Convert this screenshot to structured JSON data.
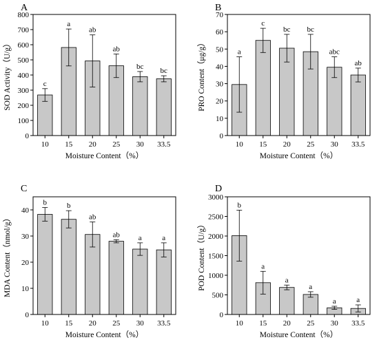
{
  "chart_data": [
    {
      "type": "bar",
      "panel": "A",
      "categories": [
        "10",
        "15",
        "20",
        "25",
        "30",
        "33.5"
      ],
      "values": [
        268,
        582,
        493,
        461,
        389,
        375
      ],
      "errors": [
        42,
        122,
        172,
        78,
        34,
        20
      ],
      "letters": [
        "c",
        "a",
        "ab",
        "ab",
        "bc",
        "bc"
      ],
      "xlabel": "Moisture Content（%）",
      "ylabel": "SOD Activity（U/g）",
      "ylim": [
        0,
        800
      ],
      "yticks": [
        0,
        100,
        200,
        300,
        400,
        500,
        600,
        700,
        800
      ]
    },
    {
      "type": "bar",
      "panel": "B",
      "categories": [
        "10",
        "15",
        "20",
        "25",
        "30",
        "33.5"
      ],
      "values": [
        29.5,
        55,
        50.5,
        48.5,
        39.5,
        35
      ],
      "errors": [
        16,
        7,
        8,
        10,
        6,
        4
      ],
      "letters": [
        "a",
        "c",
        "bc",
        "bc",
        "abc",
        "ab"
      ],
      "xlabel": "Moisture Content（%）",
      "ylabel": "PRO Content（μg/g）",
      "ylim": [
        0,
        70
      ],
      "yticks": [
        0,
        10,
        20,
        30,
        40,
        50,
        60,
        70
      ]
    },
    {
      "type": "bar",
      "panel": "C",
      "categories": [
        "10",
        "15",
        "20",
        "25",
        "30",
        "33.5"
      ],
      "values": [
        38.3,
        36.4,
        30.6,
        28,
        25,
        24.7
      ],
      "errors": [
        2.6,
        3.3,
        4.8,
        0.6,
        2.4,
        2.7
      ],
      "letters": [
        "b",
        "b",
        "ab",
        "ab",
        "a",
        "a"
      ],
      "xlabel": "Moisture Content（%）",
      "ylabel": "MDA Content（nmol/g）",
      "ylim": [
        0,
        45
      ],
      "yticks": [
        0,
        10,
        20,
        30,
        40
      ]
    },
    {
      "type": "bar",
      "panel": "D",
      "categories": [
        "10",
        "15",
        "20",
        "25",
        "30",
        "33.5"
      ],
      "values": [
        2010,
        810,
        690,
        510,
        170,
        155
      ],
      "errors": [
        650,
        290,
        60,
        70,
        40,
        90
      ],
      "letters": [
        "b",
        "a",
        "a",
        "a",
        "a",
        "a"
      ],
      "xlabel": "Moisture Content（%）",
      "ylabel": "POD Content（U/g）",
      "ylim": [
        0,
        3000
      ],
      "yticks": [
        0,
        500,
        1000,
        1500,
        2000,
        2500,
        3000
      ]
    }
  ]
}
